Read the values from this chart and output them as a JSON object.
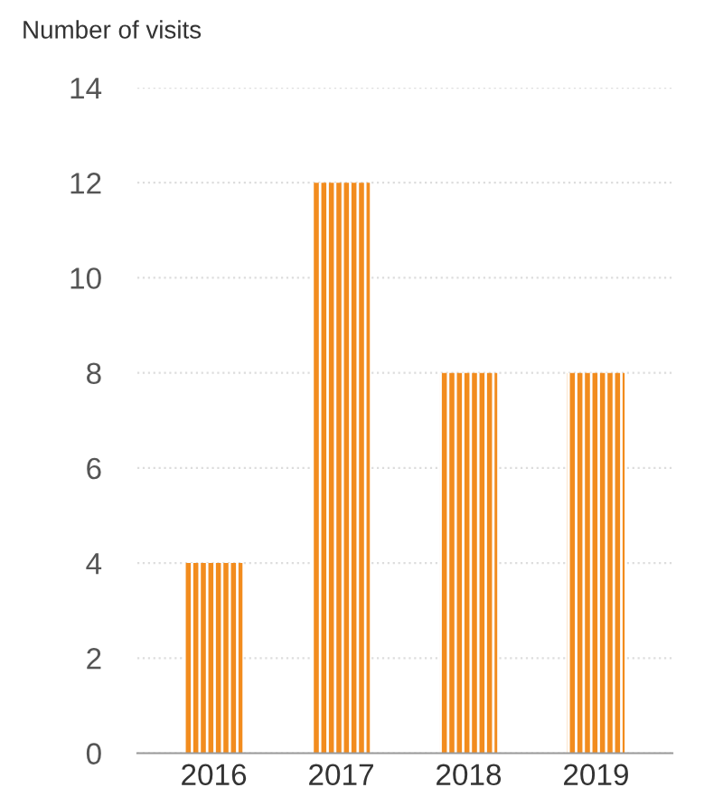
{
  "chart_data": {
    "type": "bar",
    "ylabel": "Number of visits",
    "categories": [
      "2016",
      "2017",
      "2018",
      "2019"
    ],
    "values": [
      4,
      12,
      8,
      8
    ],
    "color": "#f28c1e",
    "ylim": [
      0,
      14
    ],
    "yticks": [
      0,
      2,
      4,
      6,
      8,
      10,
      12,
      14
    ],
    "grid": "y"
  }
}
